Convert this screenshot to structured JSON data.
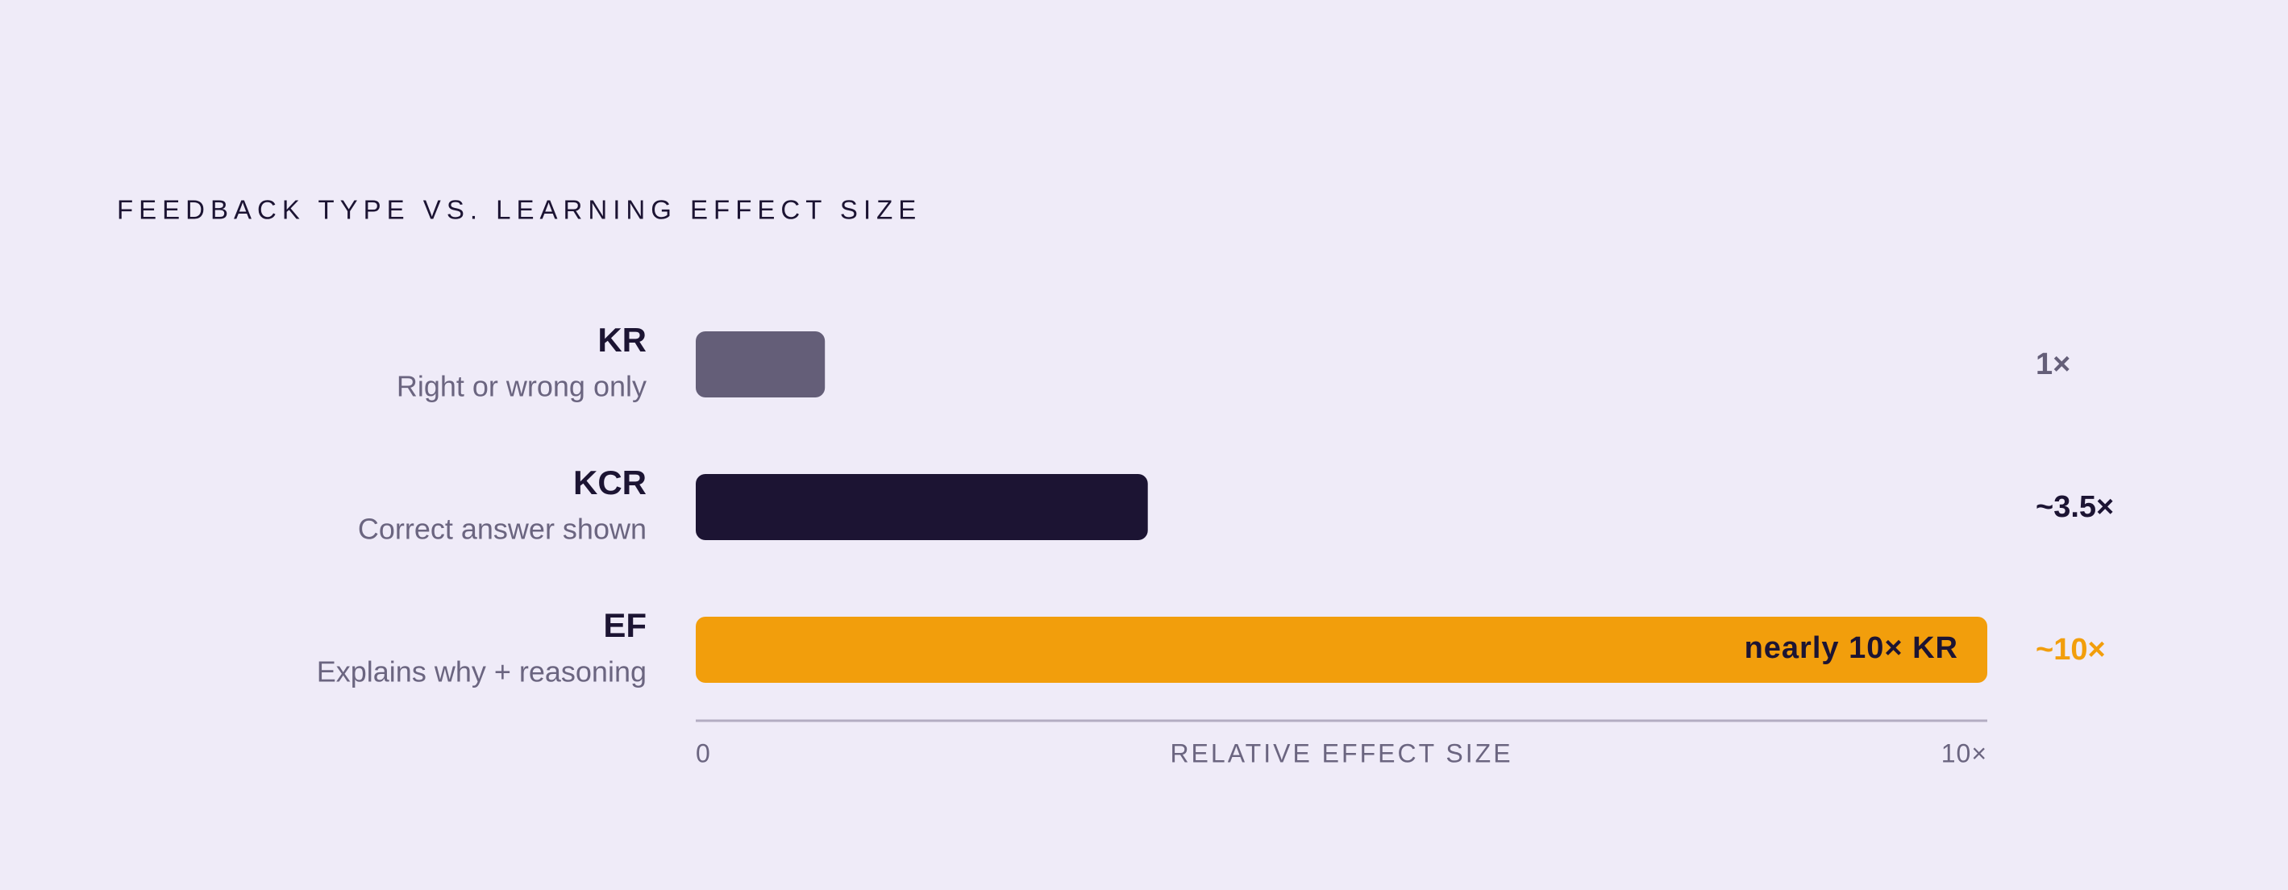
{
  "chart_data": {
    "type": "bar",
    "orientation": "horizontal",
    "title": "FEEDBACK TYPE VS. LEARNING EFFECT SIZE",
    "categories": [
      "KR",
      "KCR",
      "EF"
    ],
    "descriptions": [
      "Right or wrong only",
      "Correct answer shown",
      "Explains why + reasoning"
    ],
    "values": [
      1,
      3.5,
      10
    ],
    "value_labels": [
      "1×",
      "~3.5×",
      "~10×"
    ],
    "bar_labels": [
      null,
      null,
      "nearly 10× KR"
    ],
    "colors": [
      "#645e78",
      "#1c1433",
      "#f29e0c"
    ],
    "xlabel": "RELATIVE EFFECT SIZE",
    "xlim": [
      0,
      10
    ],
    "xticks": [
      0,
      {
        "value": 10,
        "label": "10×"
      }
    ]
  }
}
